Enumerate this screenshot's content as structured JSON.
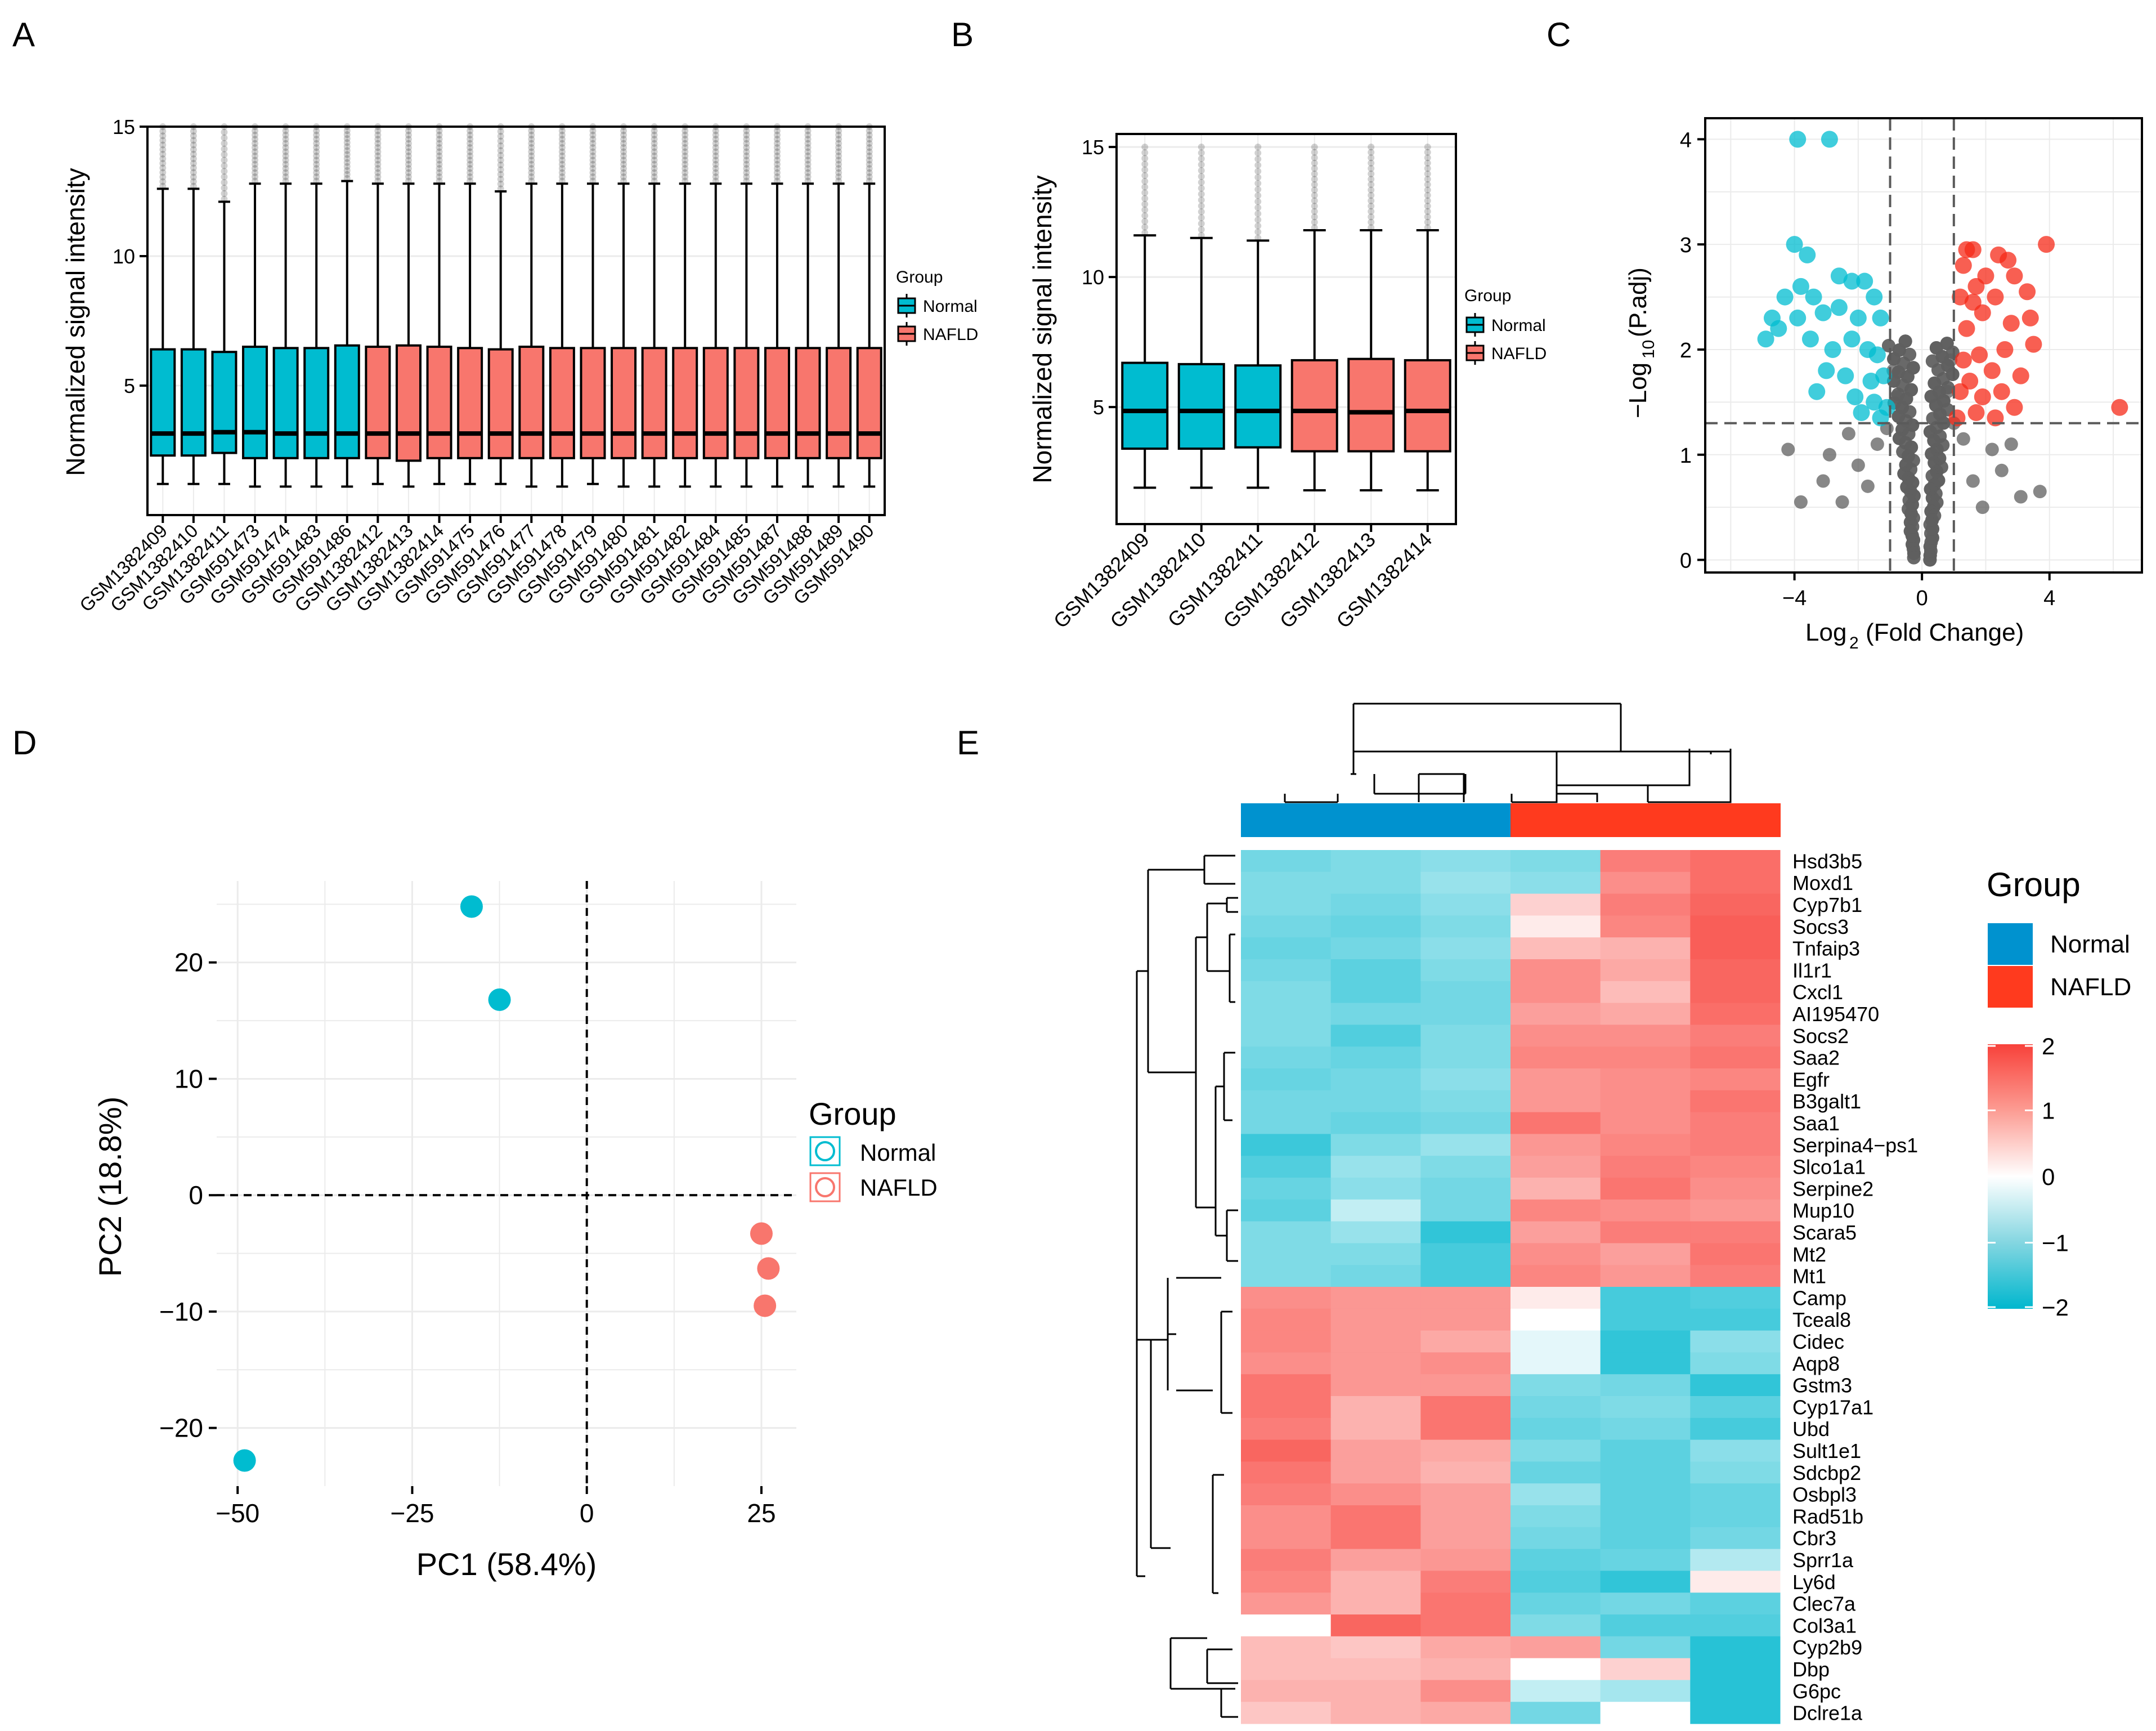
{
  "colors": {
    "normal": "#00BCD0",
    "nafld": "#F8766D",
    "nafld_strong": "#FF3A1E",
    "normal_strong": "#0092CF",
    "grey": "#5f5f5f",
    "dash": "#5a5a5a",
    "grid": "#ebebeb"
  },
  "panels": {
    "A": "A",
    "B": "B",
    "C": "C",
    "D": "D",
    "E": "E"
  },
  "chart_data": [
    {
      "panel": "A",
      "type": "boxplot",
      "ylabel": "Normalized signal intensity",
      "ylim": [
        0,
        15
      ],
      "yticks": [
        5,
        10,
        15
      ],
      "legend": {
        "title": "Group",
        "items": [
          "Normal",
          "NAFLD"
        ],
        "position": "right"
      },
      "samples": [
        {
          "name": "GSM1382409",
          "group": "Normal",
          "low": 1.2,
          "q1": 2.3,
          "med": 3.15,
          "q3": 6.4,
          "high": 12.6
        },
        {
          "name": "GSM1382410",
          "group": "Normal",
          "low": 1.2,
          "q1": 2.3,
          "med": 3.15,
          "q3": 6.4,
          "high": 12.6
        },
        {
          "name": "GSM1382411",
          "group": "Normal",
          "low": 1.2,
          "q1": 2.4,
          "med": 3.2,
          "q3": 6.3,
          "high": 12.1
        },
        {
          "name": "GSM591473",
          "group": "Normal",
          "low": 1.1,
          "q1": 2.2,
          "med": 3.2,
          "q3": 6.5,
          "high": 12.8
        },
        {
          "name": "GSM591474",
          "group": "Normal",
          "low": 1.1,
          "q1": 2.2,
          "med": 3.15,
          "q3": 6.45,
          "high": 12.8
        },
        {
          "name": "GSM591483",
          "group": "Normal",
          "low": 1.1,
          "q1": 2.2,
          "med": 3.15,
          "q3": 6.45,
          "high": 12.8
        },
        {
          "name": "GSM591486",
          "group": "Normal",
          "low": 1.1,
          "q1": 2.2,
          "med": 3.15,
          "q3": 6.55,
          "high": 12.9
        },
        {
          "name": "GSM1382412",
          "group": "NAFLD",
          "low": 1.2,
          "q1": 2.2,
          "med": 3.15,
          "q3": 6.5,
          "high": 12.8
        },
        {
          "name": "GSM1382413",
          "group": "NAFLD",
          "low": 1.1,
          "q1": 2.1,
          "med": 3.15,
          "q3": 6.55,
          "high": 12.8
        },
        {
          "name": "GSM1382414",
          "group": "NAFLD",
          "low": 1.2,
          "q1": 2.2,
          "med": 3.15,
          "q3": 6.5,
          "high": 12.8
        },
        {
          "name": "GSM591475",
          "group": "NAFLD",
          "low": 1.2,
          "q1": 2.2,
          "med": 3.15,
          "q3": 6.45,
          "high": 12.8
        },
        {
          "name": "GSM591476",
          "group": "NAFLD",
          "low": 1.2,
          "q1": 2.2,
          "med": 3.15,
          "q3": 6.4,
          "high": 12.5
        },
        {
          "name": "GSM591477",
          "group": "NAFLD",
          "low": 1.1,
          "q1": 2.2,
          "med": 3.15,
          "q3": 6.5,
          "high": 12.8
        },
        {
          "name": "GSM591478",
          "group": "NAFLD",
          "low": 1.1,
          "q1": 2.2,
          "med": 3.15,
          "q3": 6.45,
          "high": 12.8
        },
        {
          "name": "GSM591479",
          "group": "NAFLD",
          "low": 1.2,
          "q1": 2.2,
          "med": 3.15,
          "q3": 6.45,
          "high": 12.8
        },
        {
          "name": "GSM591480",
          "group": "NAFLD",
          "low": 1.1,
          "q1": 2.2,
          "med": 3.15,
          "q3": 6.45,
          "high": 12.8
        },
        {
          "name": "GSM591481",
          "group": "NAFLD",
          "low": 1.1,
          "q1": 2.2,
          "med": 3.15,
          "q3": 6.45,
          "high": 12.8
        },
        {
          "name": "GSM591482",
          "group": "NAFLD",
          "low": 1.1,
          "q1": 2.2,
          "med": 3.15,
          "q3": 6.45,
          "high": 12.8
        },
        {
          "name": "GSM591484",
          "group": "NAFLD",
          "low": 1.1,
          "q1": 2.2,
          "med": 3.15,
          "q3": 6.45,
          "high": 12.8
        },
        {
          "name": "GSM591485",
          "group": "NAFLD",
          "low": 1.1,
          "q1": 2.2,
          "med": 3.15,
          "q3": 6.45,
          "high": 12.8
        },
        {
          "name": "GSM591487",
          "group": "NAFLD",
          "low": 1.1,
          "q1": 2.2,
          "med": 3.15,
          "q3": 6.45,
          "high": 12.8
        },
        {
          "name": "GSM591488",
          "group": "NAFLD",
          "low": 1.1,
          "q1": 2.2,
          "med": 3.15,
          "q3": 6.45,
          "high": 12.8
        },
        {
          "name": "GSM591489",
          "group": "NAFLD",
          "low": 1.1,
          "q1": 2.2,
          "med": 3.15,
          "q3": 6.45,
          "high": 12.8
        },
        {
          "name": "GSM591490",
          "group": "NAFLD",
          "low": 1.1,
          "q1": 2.2,
          "med": 3.15,
          "q3": 6.45,
          "high": 12.8
        }
      ]
    },
    {
      "panel": "B",
      "type": "boxplot",
      "ylabel": "Normalized signal intensity",
      "ylim": [
        0.5,
        15.5
      ],
      "yticks": [
        5,
        10,
        15
      ],
      "legend": {
        "title": "Group",
        "items": [
          "Normal",
          "NAFLD"
        ],
        "position": "right"
      },
      "samples": [
        {
          "name": "GSM1382409",
          "group": "Normal",
          "low": 1.9,
          "q1": 3.4,
          "med": 4.85,
          "q3": 6.7,
          "high": 11.6
        },
        {
          "name": "GSM1382410",
          "group": "Normal",
          "low": 1.9,
          "q1": 3.4,
          "med": 4.85,
          "q3": 6.65,
          "high": 11.5
        },
        {
          "name": "GSM1382411",
          "group": "Normal",
          "low": 1.9,
          "q1": 3.45,
          "med": 4.85,
          "q3": 6.6,
          "high": 11.4
        },
        {
          "name": "GSM1382412",
          "group": "NAFLD",
          "low": 1.8,
          "q1": 3.3,
          "med": 4.85,
          "q3": 6.8,
          "high": 11.8
        },
        {
          "name": "GSM1382413",
          "group": "NAFLD",
          "low": 1.8,
          "q1": 3.3,
          "med": 4.8,
          "q3": 6.85,
          "high": 11.8
        },
        {
          "name": "GSM1382414",
          "group": "NAFLD",
          "low": 1.8,
          "q1": 3.3,
          "med": 4.85,
          "q3": 6.8,
          "high": 11.8
        }
      ]
    },
    {
      "panel": "C",
      "type": "scatter",
      "xlabel": "Log2 (Fold Change)",
      "ylabel": "-Log10 (P.adj)",
      "xlim": [
        -6.8,
        6.9
      ],
      "ylim": [
        -0.12,
        4.2
      ],
      "xticks": [
        -4,
        0,
        4
      ],
      "yticks": [
        0,
        1,
        2,
        3,
        4
      ],
      "thresholds": {
        "logfc": [
          -1,
          1
        ],
        "padj": 1.3
      },
      "down": [
        [
          -3.9,
          4.0
        ],
        [
          -2.9,
          4.0
        ],
        [
          -4.0,
          3.0
        ],
        [
          -3.6,
          2.9
        ],
        [
          -4.3,
          2.5
        ],
        [
          -3.8,
          2.6
        ],
        [
          -3.4,
          2.5
        ],
        [
          -2.6,
          2.7
        ],
        [
          -2.2,
          2.65
        ],
        [
          -1.8,
          2.65
        ],
        [
          -4.7,
          2.3
        ],
        [
          -4.5,
          2.2
        ],
        [
          -3.9,
          2.3
        ],
        [
          -3.1,
          2.35
        ],
        [
          -2.6,
          2.4
        ],
        [
          -2.0,
          2.3
        ],
        [
          -1.5,
          2.5
        ],
        [
          -1.3,
          2.3
        ],
        [
          -4.9,
          2.1
        ],
        [
          -3.5,
          2.1
        ],
        [
          -2.8,
          2.0
        ],
        [
          -2.2,
          2.1
        ],
        [
          -1.7,
          2.0
        ],
        [
          -1.4,
          1.95
        ],
        [
          -3.0,
          1.8
        ],
        [
          -2.4,
          1.75
        ],
        [
          -1.6,
          1.7
        ],
        [
          -1.2,
          1.75
        ],
        [
          -3.3,
          1.6
        ],
        [
          -2.1,
          1.55
        ],
        [
          -1.5,
          1.5
        ],
        [
          -1.1,
          1.45
        ],
        [
          -1.9,
          1.4
        ],
        [
          -1.3,
          1.35
        ]
      ],
      "up": [
        [
          3.9,
          3.0
        ],
        [
          1.6,
          2.95
        ],
        [
          2.4,
          2.9
        ],
        [
          1.3,
          2.8
        ],
        [
          2.9,
          2.7
        ],
        [
          3.3,
          2.55
        ],
        [
          1.7,
          2.6
        ],
        [
          2.3,
          2.5
        ],
        [
          1.2,
          2.5
        ],
        [
          3.4,
          2.3
        ],
        [
          3.5,
          2.05
        ],
        [
          2.8,
          2.25
        ],
        [
          1.9,
          2.35
        ],
        [
          1.4,
          2.2
        ],
        [
          2.6,
          2.0
        ],
        [
          1.8,
          1.95
        ],
        [
          1.3,
          1.9
        ],
        [
          2.2,
          1.8
        ],
        [
          3.1,
          1.75
        ],
        [
          1.5,
          1.7
        ],
        [
          2.5,
          1.6
        ],
        [
          1.9,
          1.55
        ],
        [
          1.2,
          1.6
        ],
        [
          2.9,
          1.45
        ],
        [
          1.7,
          1.4
        ],
        [
          1.1,
          1.35
        ],
        [
          2.3,
          1.35
        ],
        [
          6.2,
          1.45
        ],
        [
          1.6,
          2.45
        ],
        [
          2.0,
          2.7
        ],
        [
          1.4,
          2.95
        ],
        [
          2.7,
          2.85
        ]
      ],
      "ns": [
        [
          -4.2,
          1.05
        ],
        [
          -3.1,
          0.75
        ],
        [
          -3.8,
          0.55
        ],
        [
          -2.5,
          0.55
        ],
        [
          1.9,
          0.5
        ],
        [
          3.1,
          0.6
        ],
        [
          3.7,
          0.65
        ],
        [
          -2.0,
          0.9
        ],
        [
          2.5,
          0.85
        ],
        [
          -1.7,
          0.7
        ],
        [
          1.6,
          0.75
        ],
        [
          -2.9,
          1.0
        ],
        [
          2.8,
          1.1
        ],
        [
          -1.4,
          1.1
        ],
        [
          1.3,
          1.15
        ],
        [
          -2.3,
          1.2
        ],
        [
          2.2,
          1.05
        ],
        [
          -0.9,
          1.8
        ],
        [
          0.9,
          1.9
        ],
        [
          -0.8,
          1.55
        ],
        [
          0.8,
          1.6
        ],
        [
          -1.1,
          1.25
        ],
        [
          1.0,
          1.3
        ]
      ]
    },
    {
      "panel": "D",
      "type": "scatter",
      "xlabel": "PC1 (58.4%)",
      "ylabel": "PC2 (18.8%)",
      "xlim": [
        -53,
        30
      ],
      "ylim": [
        -25,
        27
      ],
      "xticks": [
        -50,
        -25,
        0,
        25
      ],
      "yticks": [
        -20,
        -10,
        0,
        10,
        20
      ],
      "legend": {
        "title": "Group",
        "items": [
          "Normal",
          "NAFLD"
        ],
        "position": "right"
      },
      "points": [
        {
          "group": "Normal",
          "x": -16.5,
          "y": 24.8
        },
        {
          "group": "Normal",
          "x": -12.5,
          "y": 16.8
        },
        {
          "group": "Normal",
          "x": -49,
          "y": -22.8
        },
        {
          "group": "NAFLD",
          "x": 25,
          "y": -3.3
        },
        {
          "group": "NAFLD",
          "x": 26,
          "y": -6.3
        },
        {
          "group": "NAFLD",
          "x": 25.5,
          "y": -9.5
        }
      ]
    },
    {
      "panel": "E",
      "type": "heatmap",
      "legend": {
        "group_title": "Group",
        "items": [
          "Normal",
          "NAFLD"
        ],
        "scale_ticks": [
          2,
          1,
          0,
          -1,
          -2
        ]
      },
      "columns": [
        "Normal",
        "Normal",
        "Normal",
        "NAFLD",
        "NAFLD",
        "NAFLD"
      ],
      "genes": [
        "Hsd3b5",
        "Moxd1",
        "Cyp7b1",
        "Socs3",
        "Tnfaip3",
        "Il1r1",
        "Cxcl1",
        "AI195470",
        "Socs2",
        "Saa2",
        "Egfr",
        "B3galt1",
        "Saa1",
        "Serpina4−ps1",
        "Slco1a1",
        "Serpine2",
        "Mup10",
        "Scara5",
        "Mt2",
        "Mt1",
        "Camp",
        "Tceal8",
        "Cidec",
        "Aqp8",
        "Gstm3",
        "Cyp17a1",
        "Ubd",
        "Sult1e1",
        "Sdcbp2",
        "Osbpl3",
        "Rad51b",
        "Cbr3",
        "Sprr1a",
        "Ly6d",
        "Clec7a",
        "Col3a1",
        "Cyp2b9",
        "Dbp",
        "G6pc",
        "Dclre1a"
      ],
      "values": [
        [
          -0.9,
          -0.8,
          -0.7,
          -0.8,
          1.2,
          1.4
        ],
        [
          -0.8,
          -0.8,
          -0.6,
          -0.7,
          1.0,
          1.4
        ],
        [
          -0.8,
          -0.9,
          -0.7,
          0.3,
          1.2,
          1.5
        ],
        [
          -0.9,
          -1.0,
          -0.8,
          0.1,
          1.1,
          1.6
        ],
        [
          -1.0,
          -0.9,
          -0.7,
          0.5,
          0.6,
          1.6
        ],
        [
          -0.9,
          -1.1,
          -0.8,
          1.0,
          0.7,
          1.5
        ],
        [
          -0.8,
          -1.1,
          -0.9,
          1.0,
          0.5,
          1.5
        ],
        [
          -0.8,
          -0.9,
          -0.9,
          0.8,
          0.7,
          1.4
        ],
        [
          -0.8,
          -1.2,
          -0.8,
          1.0,
          1.0,
          1.2
        ],
        [
          -0.9,
          -1.0,
          -0.8,
          1.1,
          1.1,
          1.3
        ],
        [
          -1.0,
          -0.9,
          -0.7,
          0.9,
          1.0,
          1.1
        ],
        [
          -0.9,
          -0.9,
          -0.8,
          0.9,
          1.0,
          1.3
        ],
        [
          -0.9,
          -1.0,
          -0.9,
          1.3,
          1.0,
          1.2
        ],
        [
          -1.4,
          -0.8,
          -0.6,
          0.9,
          1.1,
          1.2
        ],
        [
          -1.2,
          -0.6,
          -0.8,
          0.8,
          1.2,
          1.1
        ],
        [
          -1.0,
          -0.7,
          -0.9,
          0.6,
          1.3,
          1.0
        ],
        [
          -1.1,
          -0.3,
          -0.9,
          1.1,
          1.0,
          0.9
        ],
        [
          -0.8,
          -0.6,
          -1.5,
          0.8,
          1.2,
          1.2
        ],
        [
          -0.8,
          -0.8,
          -1.3,
          1.0,
          0.8,
          1.3
        ],
        [
          -0.8,
          -0.9,
          -1.3,
          1.1,
          0.9,
          1.2
        ],
        [
          1.0,
          0.9,
          0.9,
          0.1,
          -1.3,
          -1.2
        ],
        [
          1.1,
          0.9,
          0.9,
          0.0,
          -1.3,
          -1.3
        ],
        [
          1.1,
          0.9,
          0.7,
          -0.1,
          -1.5,
          -0.7
        ],
        [
          1.0,
          0.9,
          1.0,
          -0.1,
          -1.5,
          -0.8
        ],
        [
          1.3,
          0.9,
          0.9,
          -0.8,
          -0.9,
          -1.5
        ],
        [
          1.3,
          0.6,
          1.3,
          -0.9,
          -0.8,
          -1.1
        ],
        [
          1.2,
          0.6,
          1.3,
          -1.0,
          -0.9,
          -1.3
        ],
        [
          1.5,
          0.8,
          0.7,
          -0.8,
          -1.1,
          -0.7
        ],
        [
          1.3,
          0.8,
          0.6,
          -1.0,
          -1.1,
          -0.8
        ],
        [
          1.2,
          1.0,
          0.8,
          -0.6,
          -1.1,
          -1.0
        ],
        [
          1.0,
          1.3,
          0.8,
          -0.8,
          -1.1,
          -1.0
        ],
        [
          1.0,
          1.3,
          0.8,
          -0.9,
          -1.1,
          -0.9
        ],
        [
          1.2,
          0.8,
          0.9,
          -1.1,
          -1.0,
          -0.4
        ],
        [
          1.1,
          0.6,
          1.2,
          -1.2,
          -1.5,
          0.1
        ],
        [
          0.9,
          0.6,
          1.3,
          -1.0,
          -0.9,
          -1.1
        ],
        [
          0.0,
          1.5,
          1.3,
          -0.8,
          -1.2,
          -1.2
        ],
        [
          0.5,
          0.4,
          0.7,
          0.8,
          -0.9,
          -1.6
        ],
        [
          0.5,
          0.5,
          0.6,
          0.0,
          0.3,
          -1.6
        ],
        [
          0.6,
          0.6,
          1.0,
          -0.3,
          -0.5,
          -1.6
        ],
        [
          0.4,
          0.6,
          0.7,
          -0.9,
          0.0,
          -1.6
        ]
      ]
    }
  ]
}
